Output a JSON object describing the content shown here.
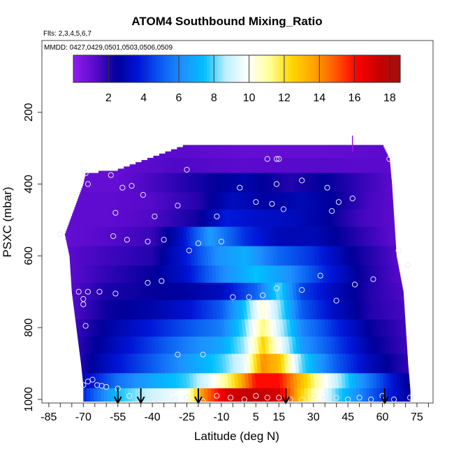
{
  "chart_data": {
    "type": "heatmap",
    "title": "ATOM4 Southbound Mixing_Ratio",
    "annotations": [
      "Flts: 2,3,4,5,6,7",
      "MMDD: 0427,0429,0501,0503,0506,0509"
    ],
    "xlabel": "Latitude (deg N)",
    "ylabel": "PSXC (mbar)",
    "xlim": [
      -88,
      82
    ],
    "ylim": [
      1010,
      0
    ],
    "x_tick_labels": [
      "-85",
      "-70",
      "-55",
      "-40",
      "-25",
      "-10",
      "5",
      "15",
      "30",
      "45",
      "60",
      "75"
    ],
    "x_tick_values": [
      -85,
      -70,
      -55,
      -40,
      -25,
      -10,
      5,
      15,
      30,
      45,
      60,
      75
    ],
    "y_tick_labels": [
      "200",
      "400",
      "600",
      "800",
      "1000"
    ],
    "y_tick_values": [
      200,
      400,
      600,
      800,
      1000
    ],
    "colorbar": {
      "range": [
        0,
        18.6
      ],
      "tick_labels": [
        "2",
        "4",
        "6",
        "8",
        "10",
        "12",
        "14",
        "16",
        "18"
      ],
      "tick_values": [
        2,
        4,
        6,
        8,
        10,
        12,
        14,
        16,
        18
      ],
      "colors": [
        "#8f1ef0",
        "#5a0acc",
        "#00009a",
        "#0016d8",
        "#0a5af0",
        "#1e90ff",
        "#00bfff",
        "#bfefff",
        "#ffffff",
        "#ffff99",
        "#ffd700",
        "#ffa500",
        "#ff5a00",
        "#ff0000",
        "#c80000",
        "#a01010"
      ]
    },
    "profile_edges": {
      "left": [
        [
          960,
          -70
        ],
        [
          900,
          -71
        ],
        [
          800,
          -73
        ],
        [
          700,
          -75
        ],
        [
          600,
          -76
        ],
        [
          540,
          -78
        ],
        [
          505,
          -76
        ],
        [
          400,
          -70
        ],
        [
          370,
          -69
        ],
        [
          360,
          -55
        ],
        [
          290,
          -25
        ]
      ],
      "right": [
        [
          290,
          60
        ],
        [
          330,
          63
        ],
        [
          400,
          64
        ],
        [
          500,
          65
        ],
        [
          600,
          66
        ],
        [
          700,
          69
        ],
        [
          800,
          70
        ],
        [
          900,
          71
        ],
        [
          975,
          72
        ]
      ]
    },
    "field_rows": [
      {
        "p": 310,
        "lat": [
          -25,
          0,
          30,
          63
        ],
        "val": [
          1.2,
          1.0,
          1.0,
          1.2
        ]
      },
      {
        "p": 345,
        "lat": [
          -69,
          -55,
          -30,
          0,
          30,
          63
        ],
        "val": [
          0.8,
          1.0,
          1.4,
          1.2,
          1.3,
          1.2
        ]
      },
      {
        "p": 395,
        "lat": [
          -72,
          -55,
          -40,
          -20,
          0,
          20,
          35,
          50,
          64
        ],
        "val": [
          1.0,
          1.0,
          1.5,
          2.2,
          2.8,
          2.0,
          2.5,
          1.8,
          1.2
        ]
      },
      {
        "p": 445,
        "lat": [
          -75,
          -60,
          -40,
          -20,
          -5,
          10,
          25,
          40,
          55,
          65
        ],
        "val": [
          1.1,
          1.1,
          1.3,
          2.0,
          3.2,
          2.6,
          3.0,
          2.4,
          1.5,
          1.2
        ]
      },
      {
        "p": 495,
        "lat": [
          -77,
          -60,
          -40,
          -20,
          -8,
          5,
          20,
          35,
          50,
          65
        ],
        "val": [
          1.1,
          1.1,
          1.4,
          2.3,
          3.8,
          3.4,
          3.2,
          2.6,
          1.6,
          1.2
        ]
      },
      {
        "p": 545,
        "lat": [
          -78,
          -60,
          -40,
          -28,
          -15,
          0,
          15,
          30,
          45,
          66
        ],
        "val": [
          1.0,
          1.3,
          1.7,
          3.2,
          6.5,
          4.2,
          3.0,
          3.0,
          2.2,
          1.1
        ]
      },
      {
        "p": 600,
        "lat": [
          -78,
          -60,
          -40,
          -25,
          -12,
          0,
          15,
          30,
          45,
          66
        ],
        "val": [
          1.2,
          1.6,
          2.0,
          3.8,
          6.2,
          7.0,
          5.2,
          4.2,
          2.6,
          1.3
        ]
      },
      {
        "p": 650,
        "lat": [
          -76,
          -60,
          -40,
          -25,
          -10,
          5,
          20,
          35,
          50,
          67
        ],
        "val": [
          1.2,
          1.8,
          2.4,
          3.5,
          6.0,
          7.5,
          6.2,
          4.0,
          2.4,
          1.3
        ]
      },
      {
        "p": 700,
        "lat": [
          -75,
          -60,
          -40,
          -25,
          -10,
          5,
          15,
          25,
          40,
          55,
          69
        ],
        "val": [
          1.3,
          2.1,
          2.4,
          2.6,
          3.2,
          5.2,
          8.0,
          4.5,
          3.0,
          2.0,
          1.4
        ]
      },
      {
        "p": 750,
        "lat": [
          -74,
          -60,
          -40,
          -25,
          -10,
          0,
          8,
          15,
          25,
          40,
          55,
          70
        ],
        "val": [
          1.4,
          2.3,
          2.8,
          3.5,
          5.0,
          7.5,
          10.5,
          8.5,
          5.0,
          3.2,
          2.0,
          1.5
        ]
      },
      {
        "p": 800,
        "lat": [
          -73,
          -60,
          -40,
          -25,
          -10,
          0,
          8,
          15,
          25,
          40,
          55,
          70
        ],
        "val": [
          1.7,
          2.6,
          3.8,
          4.8,
          5.8,
          8.0,
          11.5,
          9.0,
          6.0,
          4.0,
          2.4,
          1.6
        ]
      },
      {
        "p": 850,
        "lat": [
          -72,
          -60,
          -40,
          -25,
          -10,
          0,
          8,
          15,
          25,
          40,
          55,
          71
        ],
        "val": [
          1.9,
          2.8,
          4.5,
          5.8,
          6.8,
          8.5,
          12.5,
          10.0,
          6.5,
          4.5,
          2.6,
          1.6
        ]
      },
      {
        "p": 900,
        "lat": [
          -71,
          -60,
          -40,
          -25,
          -10,
          0,
          8,
          15,
          25,
          40,
          55,
          71
        ],
        "val": [
          2.0,
          3.2,
          5.0,
          6.5,
          7.8,
          9.5,
          14.0,
          13.0,
          8.0,
          5.0,
          3.0,
          1.8
        ]
      },
      {
        "p": 950,
        "lat": [
          -70,
          -55,
          -40,
          -25,
          -15,
          -5,
          5,
          15,
          25,
          35,
          50,
          65,
          72
        ],
        "val": [
          3.0,
          5.5,
          6.8,
          7.8,
          9.5,
          12.0,
          16.0,
          16.0,
          13.0,
          10.0,
          6.5,
          3.5,
          2.2
        ]
      },
      {
        "p": 990,
        "lat": [
          -70,
          -55,
          -40,
          -25,
          -18,
          -8,
          5,
          15,
          25,
          40,
          55,
          72
        ],
        "val": [
          4.0,
          7.5,
          9.0,
          10.0,
          14.0,
          17.0,
          17.6,
          17.0,
          12.5,
          8.0,
          5.0,
          2.5
        ]
      }
    ],
    "spike": {
      "lat": 47,
      "p_top": 265,
      "p_bottom": 310
    },
    "sample_points": [
      [
        -70,
        960
      ],
      [
        -68,
        950
      ],
      [
        -66,
        945
      ],
      [
        -64,
        960
      ],
      [
        -62,
        962
      ],
      [
        -60,
        965
      ],
      [
        -55,
        970
      ],
      [
        -50,
        990
      ],
      [
        -45,
        1000
      ],
      [
        -38,
        1000
      ],
      [
        -30,
        1000
      ],
      [
        -25,
        995
      ],
      [
        -18,
        1005
      ],
      [
        -12,
        990
      ],
      [
        -6,
        995
      ],
      [
        0,
        1000
      ],
      [
        5,
        990
      ],
      [
        10,
        995
      ],
      [
        15,
        995
      ],
      [
        20,
        1000
      ],
      [
        25,
        1000
      ],
      [
        30,
        990
      ],
      [
        35,
        1000
      ],
      [
        40,
        995
      ],
      [
        45,
        1000
      ],
      [
        50,
        995
      ],
      [
        55,
        1000
      ],
      [
        60,
        990
      ],
      [
        65,
        1000
      ],
      [
        72,
        995
      ],
      [
        -69,
        795
      ],
      [
        -70,
        735
      ],
      [
        -70,
        720
      ],
      [
        -72,
        700
      ],
      [
        -68,
        700
      ],
      [
        -63,
        700
      ],
      [
        -56,
        705
      ],
      [
        -42,
        675
      ],
      [
        -36,
        670
      ],
      [
        -29,
        875
      ],
      [
        -18,
        875
      ],
      [
        -5,
        715
      ],
      [
        2,
        715
      ],
      [
        8,
        710
      ],
      [
        12,
        730
      ],
      [
        14,
        690
      ],
      [
        25,
        695
      ],
      [
        33,
        655
      ],
      [
        40,
        725
      ],
      [
        48,
        680
      ],
      [
        56,
        665
      ],
      [
        67,
        585
      ],
      [
        71,
        625
      ],
      [
        -80,
        540
      ],
      [
        -57,
        545
      ],
      [
        -51,
        555
      ],
      [
        -42,
        560
      ],
      [
        -35,
        555
      ],
      [
        -24,
        585
      ],
      [
        -10,
        560
      ],
      [
        -20,
        565
      ],
      [
        -56,
        480
      ],
      [
        -44,
        430
      ],
      [
        -39,
        490
      ],
      [
        -29,
        460
      ],
      [
        -12,
        490
      ],
      [
        -2,
        410
      ],
      [
        5,
        450
      ],
      [
        12,
        455
      ],
      [
        14,
        400
      ],
      [
        17,
        470
      ],
      [
        25,
        390
      ],
      [
        36,
        410
      ],
      [
        38,
        475
      ],
      [
        41,
        450
      ],
      [
        47,
        440
      ],
      [
        -69,
        370
      ],
      [
        -68,
        400
      ],
      [
        -58,
        375
      ],
      [
        -53,
        410
      ],
      [
        -49,
        405
      ],
      [
        -25,
        360
      ],
      [
        10,
        330
      ],
      [
        14,
        330
      ],
      [
        15,
        330
      ],
      [
        63,
        330
      ]
    ],
    "arrow_latitudes": [
      -55,
      -45,
      -20,
      18,
      61
    ]
  }
}
